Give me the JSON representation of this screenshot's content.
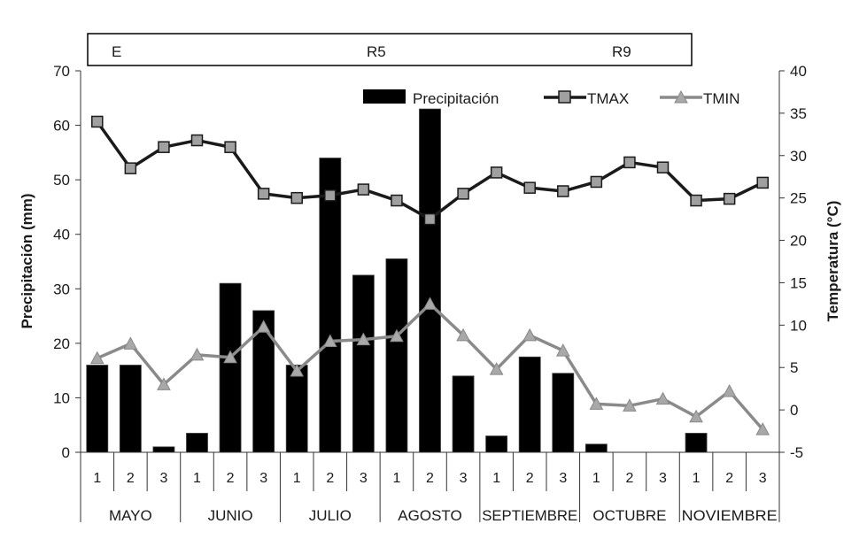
{
  "colors": {
    "bar": "#000000",
    "tmax_line": "#1a1a1a",
    "tmin_line": "#8a8a8a",
    "tmax_marker": "#a0a0a0",
    "tmin_marker": "#a8a8a8",
    "axis": "#333333"
  },
  "stages": [
    "E",
    "R5",
    "R9"
  ],
  "chart_data": {
    "type": "bar",
    "title": "",
    "ylabel": "Precipitación (mm)",
    "y2label": "Temperatura (°C)",
    "ylim": [
      0,
      70
    ],
    "y2lim": [
      -5,
      40
    ],
    "yticks": [
      "0",
      "10",
      "20",
      "30",
      "40",
      "50",
      "60",
      "70"
    ],
    "y2ticks": [
      "-5",
      "0",
      "5",
      "10",
      "15",
      "20",
      "25",
      "30",
      "35",
      "40"
    ],
    "months": [
      "MAYO",
      "JUNIO",
      "JULIO",
      "AGOSTO",
      "SEPTIEMBRE",
      "OCTUBRE",
      "NOVIEMBRE"
    ],
    "categories": [
      "1",
      "2",
      "3",
      "1",
      "2",
      "3",
      "1",
      "2",
      "3",
      "1",
      "2",
      "3",
      "1",
      "2",
      "3",
      "1",
      "2",
      "3",
      "1",
      "2",
      "3"
    ],
    "legend": {
      "precip": "Precipitación",
      "tmax": "TMAX",
      "tmin": "TMIN",
      "position": "top-right"
    },
    "series": [
      {
        "name": "Precipitación",
        "axis": "left",
        "type": "bar",
        "values": [
          16,
          16,
          1,
          3.5,
          31,
          26,
          16,
          54,
          32.5,
          35.5,
          63,
          14,
          3,
          17.5,
          14.5,
          1.5,
          0,
          0,
          3.5,
          0,
          0
        ]
      },
      {
        "name": "TMAX",
        "axis": "right",
        "type": "line",
        "values": [
          34,
          28.5,
          31,
          31.8,
          31,
          25.5,
          25,
          25.3,
          26,
          24.7,
          22.5,
          25.5,
          28,
          26.2,
          25.8,
          26.9,
          29.2,
          28.6,
          24.7,
          24.9,
          26.8
        ]
      },
      {
        "name": "TMIN",
        "axis": "right",
        "type": "line",
        "values": [
          6.1,
          7.8,
          3,
          6.5,
          6.2,
          9.8,
          4.6,
          8.1,
          8.3,
          8.7,
          12.5,
          8.8,
          4.8,
          8.8,
          7,
          0.7,
          0.5,
          1.3,
          -0.8,
          2.2,
          -2.3
        ]
      }
    ]
  }
}
